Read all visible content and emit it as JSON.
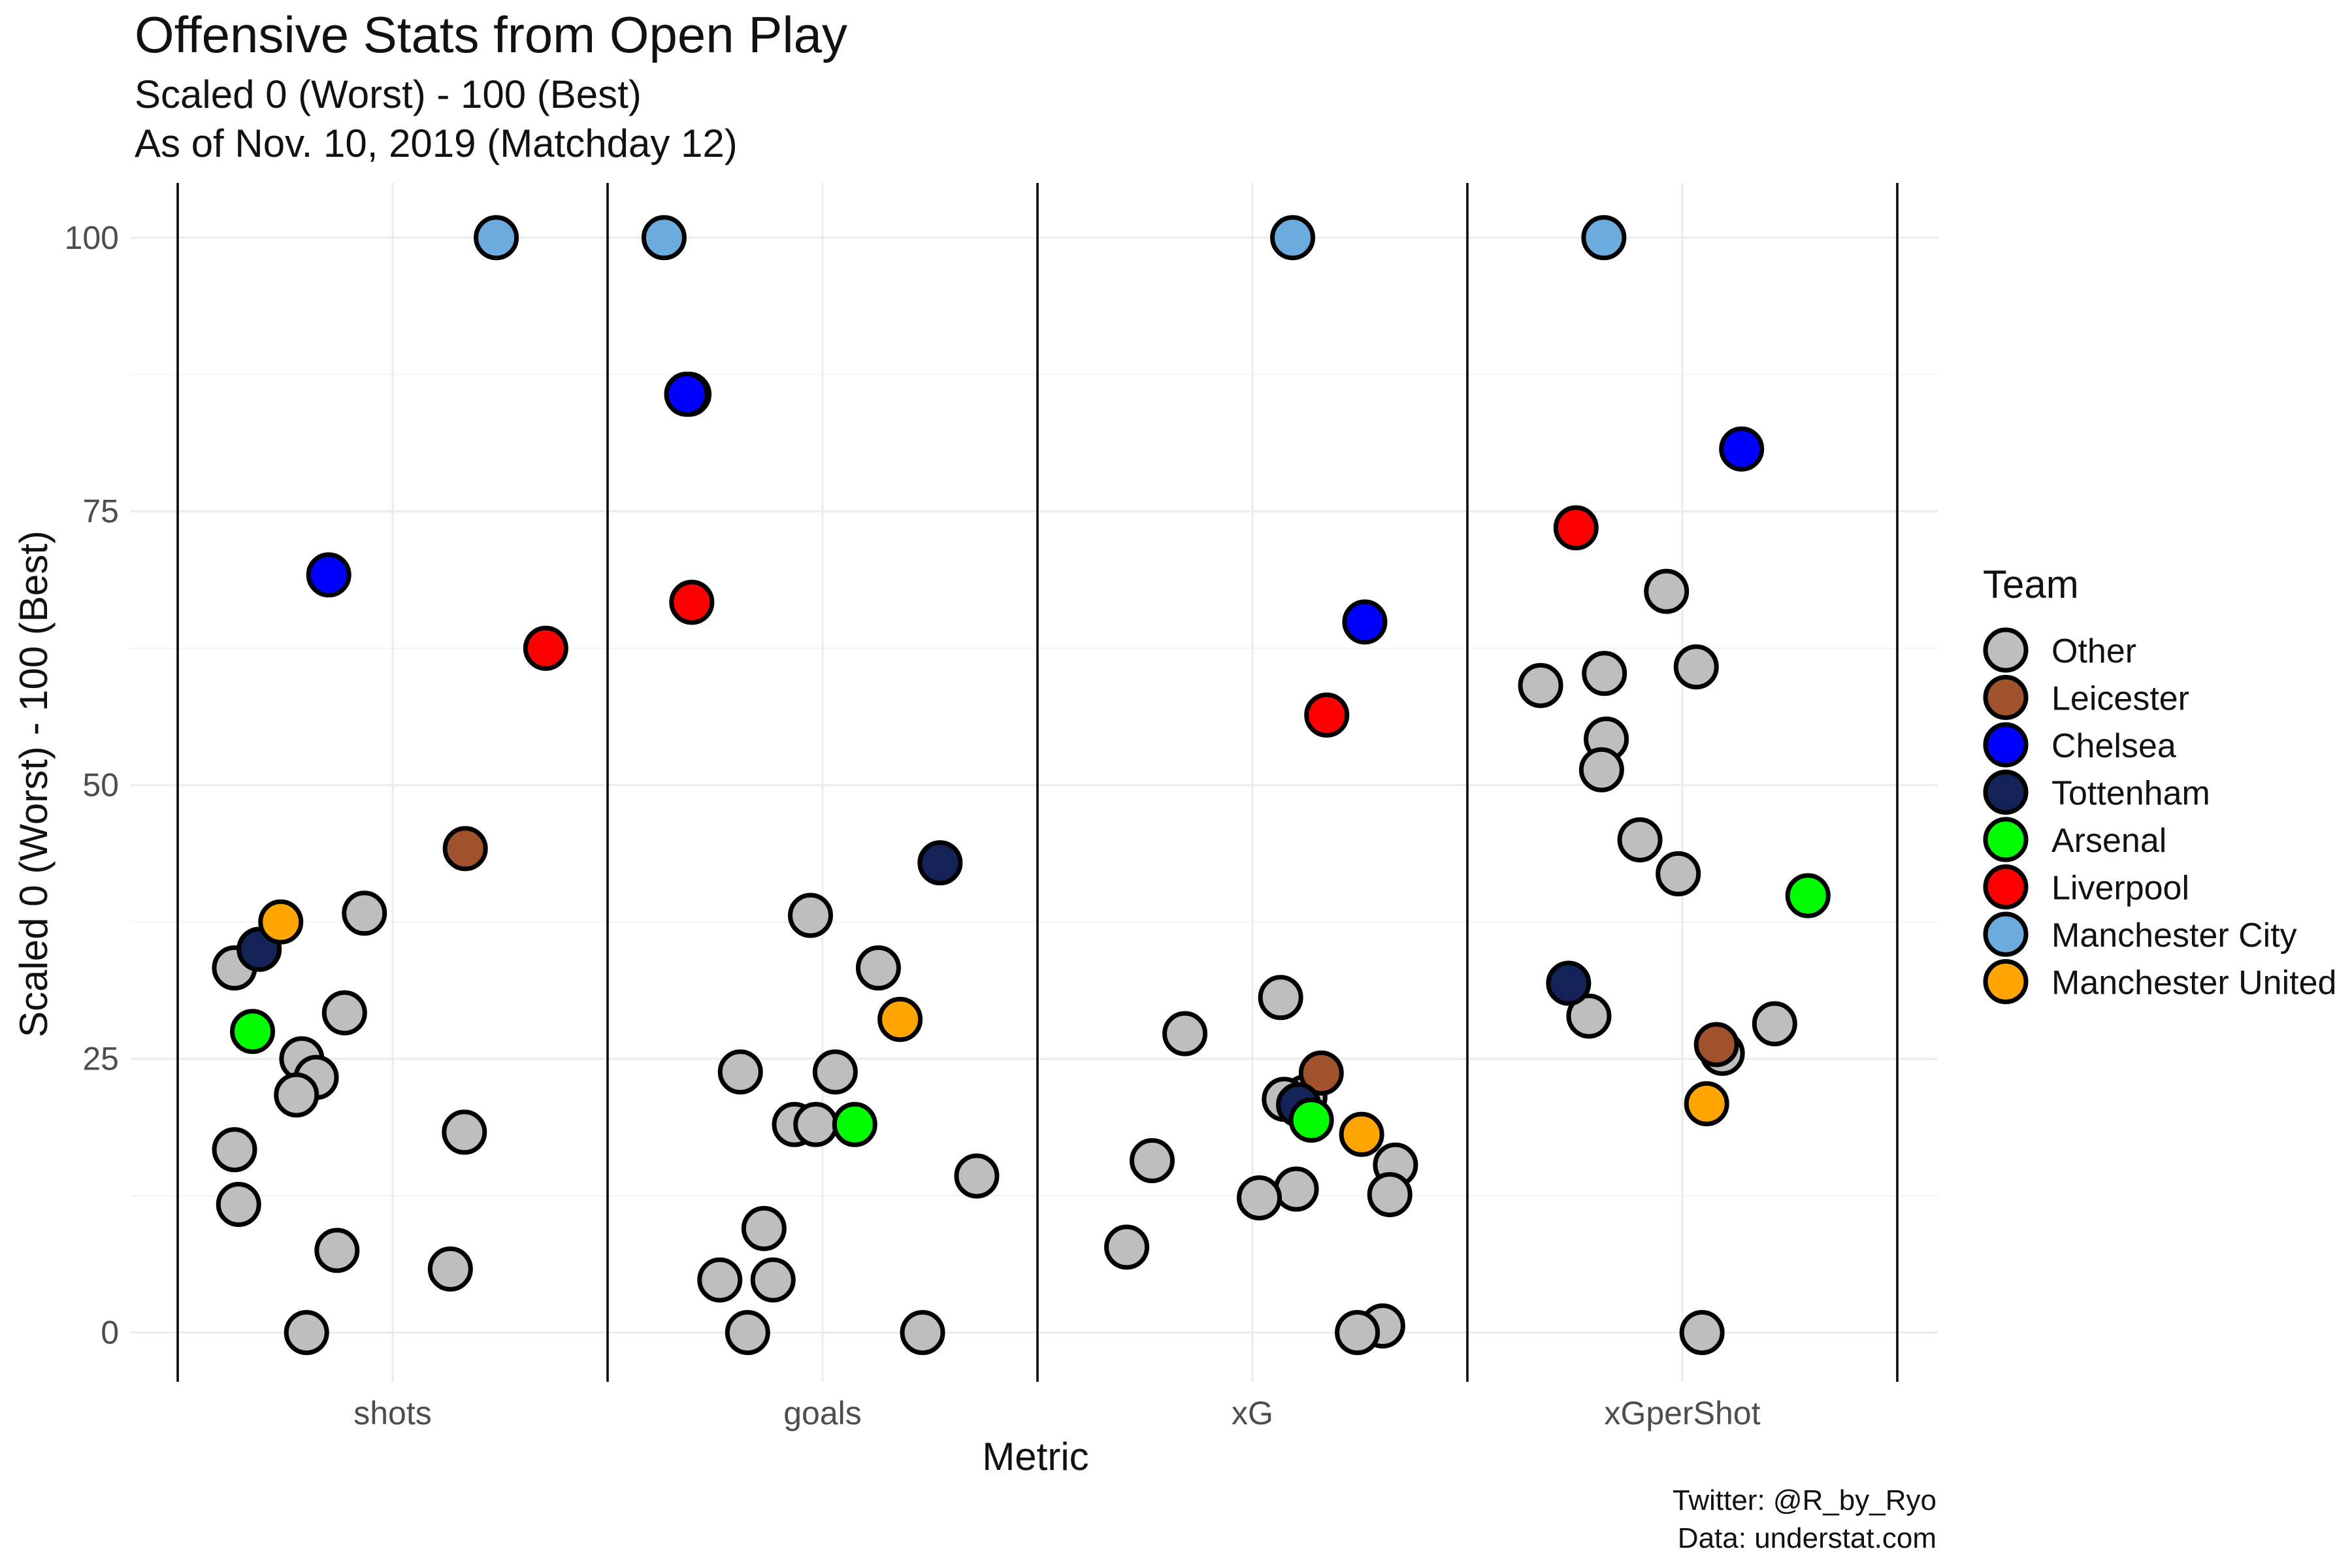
{
  "header": {
    "title": "Offensive Stats from Open Play",
    "subtitle_line1": "Scaled 0 (Worst) - 100 (Best)",
    "subtitle_line2": "As of Nov. 10, 2019 (Matchday 12)"
  },
  "caption": {
    "line1": "Twitter: @R_by_Ryo",
    "line2": "Data: understat.com"
  },
  "legend": {
    "title": "Team",
    "position": "right",
    "items": [
      {
        "label": "Other",
        "color": "#bebebe"
      },
      {
        "label": "Leicester",
        "color": "#a0522d"
      },
      {
        "label": "Chelsea",
        "color": "#0000ff"
      },
      {
        "label": "Tottenham",
        "color": "#132257"
      },
      {
        "label": "Arsenal",
        "color": "#00ff00"
      },
      {
        "label": "Liverpool",
        "color": "#ff0000"
      },
      {
        "label": "Manchester City",
        "color": "#6cabdd"
      },
      {
        "label": "Manchester United",
        "color": "#ffa500"
      }
    ]
  },
  "chart_data": {
    "type": "scatter",
    "xlabel": "Metric",
    "ylabel": "Scaled 0 (Worst) - 100 (Best)",
    "categories": [
      "shots",
      "goals",
      "xG",
      "xGperShot"
    ],
    "ylim": [
      -4.5,
      105
    ],
    "yticks": [
      0,
      25,
      50,
      75,
      100
    ],
    "grid": true,
    "series": [
      {
        "name": "Other",
        "color": "#bebebe",
        "points": [
          {
            "x": "shots",
            "y": 38.3
          },
          {
            "x": "shots",
            "y": 33.3
          },
          {
            "x": "shots",
            "y": 29.2
          },
          {
            "x": "shots",
            "y": 25.0
          },
          {
            "x": "shots",
            "y": 23.3
          },
          {
            "x": "shots",
            "y": 21.7
          },
          {
            "x": "shots",
            "y": 18.3
          },
          {
            "x": "shots",
            "y": 16.7
          },
          {
            "x": "shots",
            "y": 11.7
          },
          {
            "x": "shots",
            "y": 7.5
          },
          {
            "x": "shots",
            "y": 5.8
          },
          {
            "x": "shots",
            "y": 0
          },
          {
            "x": "goals",
            "y": 38.1
          },
          {
            "x": "goals",
            "y": 33.3
          },
          {
            "x": "goals",
            "y": 23.8
          },
          {
            "x": "goals",
            "y": 23.8
          },
          {
            "x": "goals",
            "y": 19.0
          },
          {
            "x": "goals",
            "y": 19.0
          },
          {
            "x": "goals",
            "y": 14.3
          },
          {
            "x": "goals",
            "y": 9.5
          },
          {
            "x": "goals",
            "y": 4.8
          },
          {
            "x": "goals",
            "y": 4.8
          },
          {
            "x": "goals",
            "y": 0
          },
          {
            "x": "goals",
            "y": 0
          },
          {
            "x": "xG",
            "y": 30.6
          },
          {
            "x": "xG",
            "y": 27.3
          },
          {
            "x": "xG",
            "y": 21.5
          },
          {
            "x": "xG",
            "y": 21.3
          },
          {
            "x": "xG",
            "y": 15.7
          },
          {
            "x": "xG",
            "y": 15.3
          },
          {
            "x": "xG",
            "y": 13.1
          },
          {
            "x": "xG",
            "y": 12.6
          },
          {
            "x": "xG",
            "y": 12.3
          },
          {
            "x": "xG",
            "y": 7.8
          },
          {
            "x": "xG",
            "y": 0.6
          },
          {
            "x": "xG",
            "y": 0
          },
          {
            "x": "xGperShot",
            "y": 67.7
          },
          {
            "x": "xGperShot",
            "y": 60.8
          },
          {
            "x": "xGperShot",
            "y": 60.2
          },
          {
            "x": "xGperShot",
            "y": 59.1
          },
          {
            "x": "xGperShot",
            "y": 54.2
          },
          {
            "x": "xGperShot",
            "y": 51.4
          },
          {
            "x": "xGperShot",
            "y": 45.0
          },
          {
            "x": "xGperShot",
            "y": 41.9
          },
          {
            "x": "xGperShot",
            "y": 28.9
          },
          {
            "x": "xGperShot",
            "y": 28.2
          },
          {
            "x": "xGperShot",
            "y": 25.5
          },
          {
            "x": "xGperShot",
            "y": 0
          }
        ]
      },
      {
        "name": "Leicester",
        "color": "#a0522d",
        "points": [
          {
            "x": "shots",
            "y": 44.2
          },
          {
            "x": "goals",
            "y": 85.7
          },
          {
            "x": "xG",
            "y": 23.7
          },
          {
            "x": "xGperShot",
            "y": 26.3
          }
        ]
      },
      {
        "name": "Chelsea",
        "color": "#0000ff",
        "points": [
          {
            "x": "shots",
            "y": 69.2
          },
          {
            "x": "goals",
            "y": 85.7
          },
          {
            "x": "xG",
            "y": 64.9
          },
          {
            "x": "xGperShot",
            "y": 80.7
          }
        ]
      },
      {
        "name": "Tottenham",
        "color": "#132257",
        "points": [
          {
            "x": "shots",
            "y": 35.0
          },
          {
            "x": "goals",
            "y": 42.9
          },
          {
            "x": "xG",
            "y": 20.8
          },
          {
            "x": "xGperShot",
            "y": 31.9
          }
        ]
      },
      {
        "name": "Arsenal",
        "color": "#00ff00",
        "points": [
          {
            "x": "shots",
            "y": 27.5
          },
          {
            "x": "goals",
            "y": 19.0
          },
          {
            "x": "xG",
            "y": 19.4
          },
          {
            "x": "xGperShot",
            "y": 39.9
          }
        ]
      },
      {
        "name": "Liverpool",
        "color": "#ff0000",
        "points": [
          {
            "x": "shots",
            "y": 62.5
          },
          {
            "x": "goals",
            "y": 66.7
          },
          {
            "x": "xG",
            "y": 56.4
          },
          {
            "x": "xGperShot",
            "y": 73.5
          }
        ]
      },
      {
        "name": "Manchester City",
        "color": "#6cabdd",
        "points": [
          {
            "x": "shots",
            "y": 100
          },
          {
            "x": "goals",
            "y": 100
          },
          {
            "x": "xG",
            "y": 100
          },
          {
            "x": "xGperShot",
            "y": 100
          }
        ]
      },
      {
        "name": "Manchester United",
        "color": "#ffa500",
        "points": [
          {
            "x": "shots",
            "y": 37.5
          },
          {
            "x": "goals",
            "y": 28.6
          },
          {
            "x": "xG",
            "y": 18.1
          },
          {
            "x": "xGperShot",
            "y": 20.9
          }
        ]
      }
    ]
  }
}
